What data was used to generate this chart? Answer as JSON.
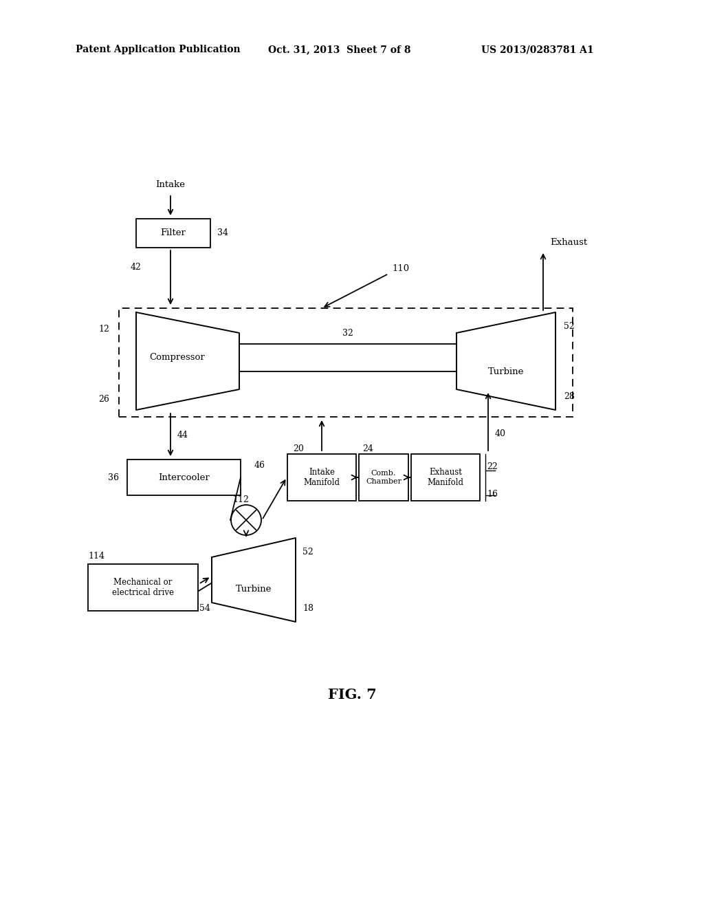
{
  "bg_color": "#ffffff",
  "header_left": "Patent Application Publication",
  "header_center": "Oct. 31, 2013  Sheet 7 of 8",
  "header_right": "US 2013/0283781 A1",
  "fig_label": "FIG. 7"
}
